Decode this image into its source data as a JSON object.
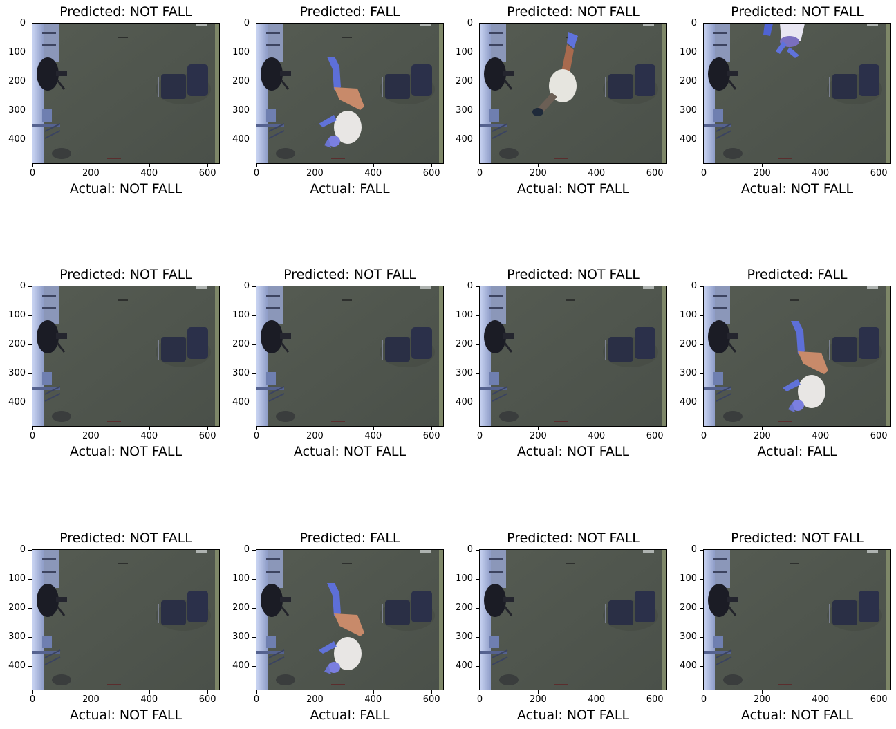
{
  "axes": {
    "y_ticks": [
      "0",
      "100",
      "200",
      "300",
      "400"
    ],
    "x_ticks": [
      "0",
      "200",
      "400",
      "600"
    ]
  },
  "panels": [
    {
      "predicted": "Predicted: NOT FALL",
      "actual": "Actual: NOT FALL",
      "person": "none"
    },
    {
      "predicted": "Predicted: FALL",
      "actual": "Actual: FALL",
      "person": "fallen"
    },
    {
      "predicted": "Predicted: NOT FALL",
      "actual": "Actual: NOT FALL",
      "person": "walking"
    },
    {
      "predicted": "Predicted: NOT FALL",
      "actual": "Actual: NOT FALL",
      "person": "top-edge"
    },
    {
      "predicted": "Predicted: NOT FALL",
      "actual": "Actual: NOT FALL",
      "person": "none"
    },
    {
      "predicted": "Predicted: NOT FALL",
      "actual": "Actual: NOT FALL",
      "person": "none"
    },
    {
      "predicted": "Predicted: NOT FALL",
      "actual": "Actual: NOT FALL",
      "person": "none"
    },
    {
      "predicted": "Predicted: FALL",
      "actual": "Actual: FALL",
      "person": "fallen-right"
    },
    {
      "predicted": "Predicted: NOT FALL",
      "actual": "Actual: NOT FALL",
      "person": "none"
    },
    {
      "predicted": "Predicted: FALL",
      "actual": "Actual: FALL",
      "person": "fallen"
    },
    {
      "predicted": "Predicted: NOT FALL",
      "actual": "Actual: NOT FALL",
      "person": "none"
    },
    {
      "predicted": "Predicted: NOT FALL",
      "actual": "Actual: NOT FALL",
      "person": "none"
    }
  ]
}
